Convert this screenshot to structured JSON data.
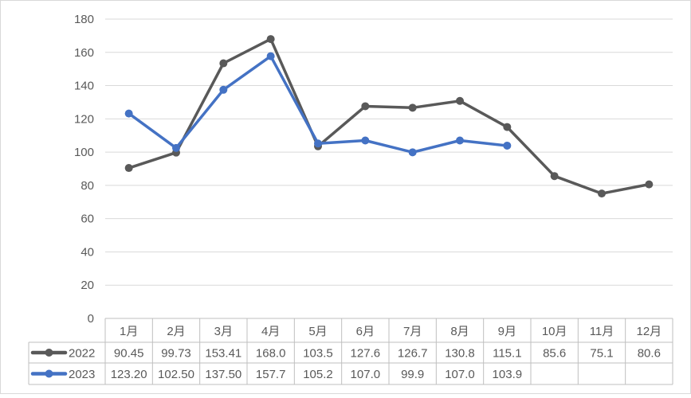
{
  "chart_data": {
    "type": "line",
    "categories": [
      "1月",
      "2月",
      "3月",
      "4月",
      "5月",
      "6月",
      "7月",
      "8月",
      "9月",
      "10月",
      "11月",
      "12月"
    ],
    "series": [
      {
        "name": "2022",
        "color": "#595959",
        "values": [
          90.45,
          99.73,
          153.41,
          168.0,
          103.5,
          127.6,
          126.7,
          130.8,
          115.1,
          85.6,
          75.1,
          80.6
        ],
        "labels": [
          "90.45",
          "99.73",
          "153.41",
          "168.0",
          "103.5",
          "127.6",
          "126.7",
          "130.8",
          "115.1",
          "85.6",
          "75.1",
          "80.6"
        ]
      },
      {
        "name": "2023",
        "color": "#4472C4",
        "values": [
          123.2,
          102.5,
          137.5,
          157.7,
          105.2,
          107.0,
          99.9,
          107.0,
          103.9,
          null,
          null,
          null
        ],
        "labels": [
          "123.20",
          "102.50",
          "137.50",
          "157.7",
          "105.2",
          "107.0",
          "99.9",
          "107.0",
          "103.9",
          "",
          "",
          ""
        ]
      }
    ],
    "y_ticks": [
      "0",
      "20",
      "40",
      "60",
      "80",
      "100",
      "120",
      "140",
      "160",
      "180"
    ],
    "ylim": [
      0,
      180
    ],
    "grid": true,
    "legend": "data-table-below"
  }
}
